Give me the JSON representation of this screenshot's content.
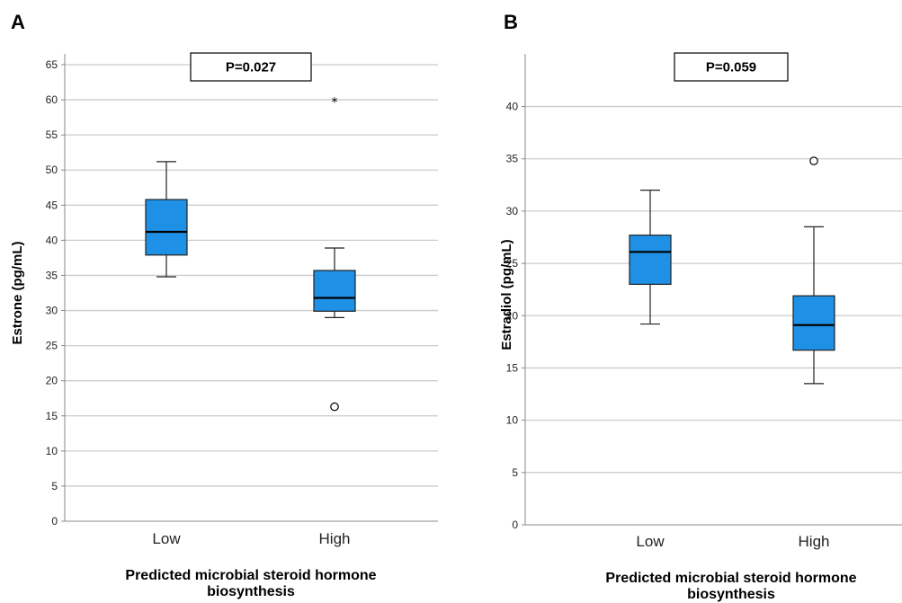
{
  "colors": {
    "box_fill": "#1e90e6",
    "box_stroke": "#222222",
    "grid": "#cccccc",
    "axis": "#888888"
  },
  "chart_data": [
    {
      "panel": "A",
      "type": "box",
      "ylabel": "Estrone (pg/mL)",
      "xlabel_lines": [
        "Predicted microbial steroid hormone",
        "biosynthesis"
      ],
      "annotation": "P=0.027",
      "ylim": [
        0,
        65
      ],
      "yticks": [
        0,
        5,
        10,
        15,
        20,
        25,
        30,
        35,
        40,
        45,
        50,
        55,
        60,
        65
      ],
      "grid": true,
      "categories": [
        "Low",
        "High"
      ],
      "boxes": [
        {
          "category": "Low",
          "whisker_low": 34.8,
          "q1": 37.9,
          "median": 41.2,
          "q3": 45.8,
          "whisker_high": 51.2,
          "outliers": []
        },
        {
          "category": "High",
          "whisker_low": 29.0,
          "q1": 29.9,
          "median": 31.8,
          "q3": 35.7,
          "whisker_high": 38.9,
          "outliers": [
            {
              "value": 16.3,
              "marker": "circle"
            },
            {
              "value": 59.8,
              "marker": "star"
            }
          ]
        }
      ]
    },
    {
      "panel": "B",
      "type": "box",
      "ylabel": "Estradiol (pg/mL)",
      "xlabel_lines": [
        "Predicted microbial steroid hormone",
        "biosynthesis"
      ],
      "annotation": "P=0.059",
      "ylim": [
        0,
        44
      ],
      "yticks": [
        0,
        5,
        10,
        15,
        20,
        25,
        30,
        35,
        40
      ],
      "grid": true,
      "categories": [
        "Low",
        "High"
      ],
      "boxes": [
        {
          "category": "Low",
          "whisker_low": 19.2,
          "q1": 23.0,
          "median": 26.1,
          "q3": 27.7,
          "whisker_high": 32.0,
          "outliers": []
        },
        {
          "category": "High",
          "whisker_low": 13.5,
          "q1": 16.7,
          "median": 19.1,
          "q3": 21.9,
          "whisker_high": 28.5,
          "outliers": [
            {
              "value": 34.8,
              "marker": "circle"
            }
          ]
        }
      ]
    }
  ]
}
